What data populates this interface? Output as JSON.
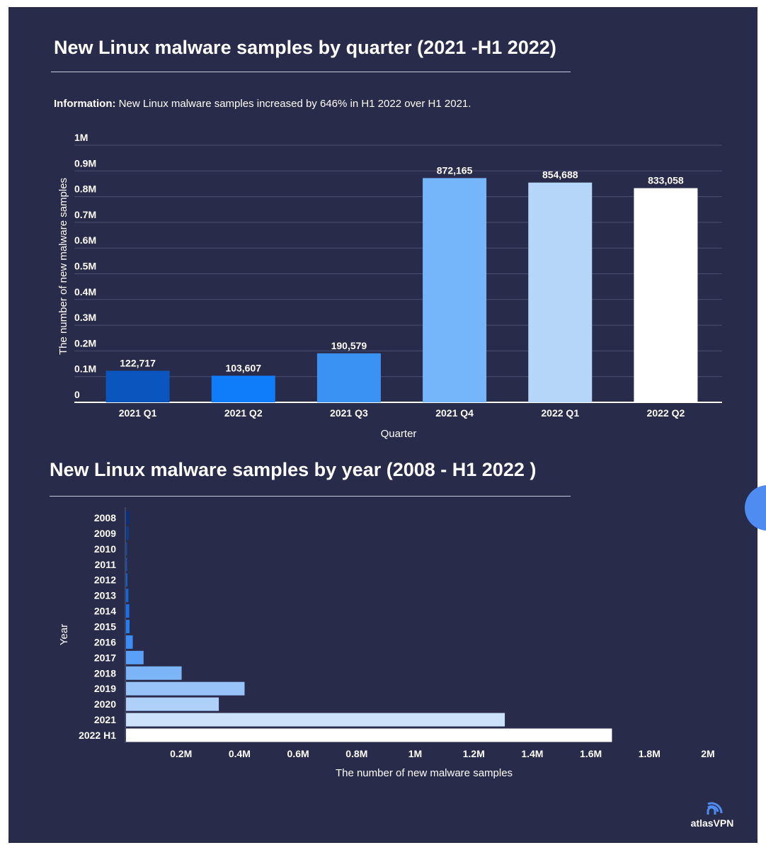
{
  "colors": {
    "background": "#292b4b",
    "gridline": "#4b4e6e",
    "text": "#ffffff",
    "accent": "#4e8cf2"
  },
  "info": {
    "label": "Information:",
    "text": " New Linux malware samples increased by 646% in H1 2022 over H1 2021."
  },
  "logo": {
    "icon": "atlas-wifi-icon",
    "text": "atlasVPN"
  },
  "chart_data": [
    {
      "type": "bar",
      "title": "New Linux malware samples by quarter (2021 -H1 2022)",
      "xlabel": "Quarter",
      "ylabel": "The number of new malware samples",
      "ylim": [
        0,
        1000000
      ],
      "yticks": [
        0,
        100000,
        200000,
        300000,
        400000,
        500000,
        600000,
        700000,
        800000,
        900000,
        1000000
      ],
      "ytick_labels": [
        "0",
        "0.1M",
        "0.2M",
        "0.3M",
        "0.4M",
        "0.5M",
        "0.6M",
        "0.7M",
        "0.8M",
        "0.9M",
        "1M"
      ],
      "categories": [
        "2021 Q1",
        "2021 Q2",
        "2021 Q3",
        "2021 Q4",
        "2022 Q1",
        "2022 Q2"
      ],
      "values": [
        122717,
        103607,
        190579,
        872165,
        854688,
        833058
      ],
      "data_labels": [
        "122,717",
        "103,607",
        "190,579",
        "872,165",
        "854,688",
        "833,058"
      ],
      "colors": [
        "#0b55bf",
        "#0f7cf9",
        "#3a92f2",
        "#75b6fb",
        "#b5d6f8",
        "#ffffff"
      ],
      "grid": true
    },
    {
      "type": "bar",
      "orientation": "horizontal",
      "title": "New Linux malware samples by year (2008 - H1 2022 )",
      "xlabel": "The number of new malware samples",
      "ylabel": "Year",
      "xlim": [
        0,
        2000000
      ],
      "xticks": [
        200000,
        400000,
        600000,
        800000,
        1000000,
        1200000,
        1400000,
        1600000,
        1800000,
        2000000
      ],
      "xtick_labels": [
        "0.2M",
        "0.4M",
        "0.6M",
        "0.8M",
        "1M",
        "1.2M",
        "1.4M",
        "1.6M",
        "1.8M",
        "2M"
      ],
      "categories": [
        "2008",
        "2009",
        "2010",
        "2011",
        "2012",
        "2013",
        "2014",
        "2015",
        "2016",
        "2017",
        "2018",
        "2019",
        "2020",
        "2021",
        "2022 H1"
      ],
      "values": [
        12000,
        9000,
        3500,
        3000,
        5000,
        8000,
        11000,
        12000,
        23000,
        60000,
        190000,
        405000,
        317000,
        1294000,
        1660000
      ],
      "colors": [
        "#0c2f7a",
        "#0c3b8c",
        "#0c4aa5",
        "#0d55bb",
        "#0f5fcc",
        "#1168dc",
        "#1574ec",
        "#207ff3",
        "#3a8ef5",
        "#5aa0f7",
        "#7cb4f8",
        "#98c3f9",
        "#aed0f9",
        "#cde1fa",
        "#ffffff"
      ],
      "grid": false
    }
  ]
}
